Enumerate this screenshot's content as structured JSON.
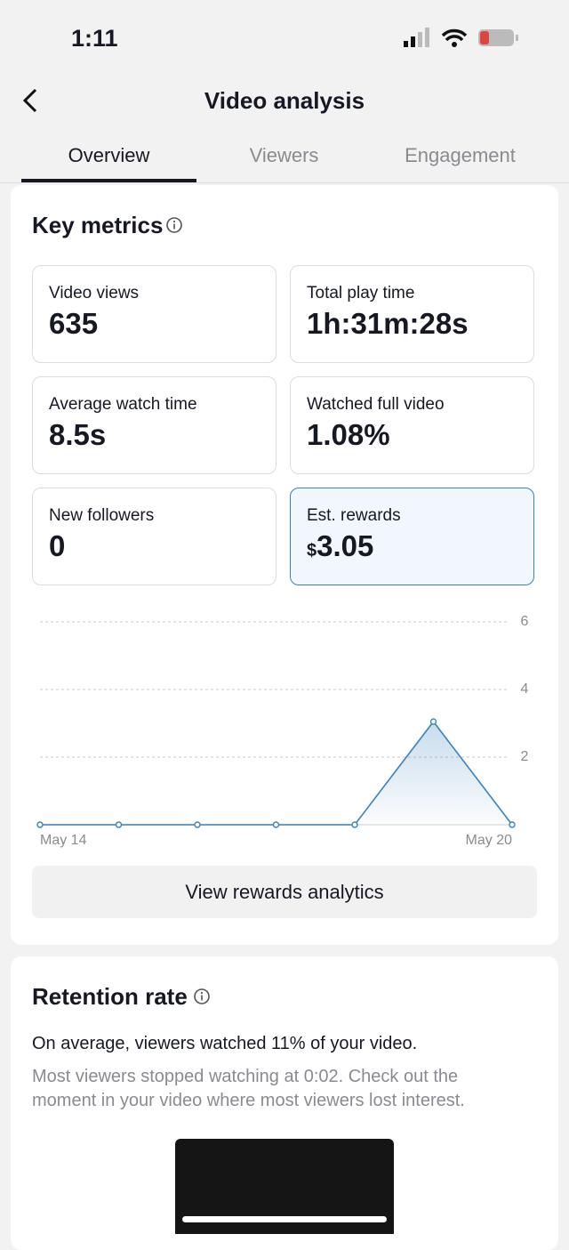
{
  "status_bar": {
    "time": "1:11"
  },
  "header": {
    "title": "Video analysis"
  },
  "tabs": [
    "Overview",
    "Viewers",
    "Engagement"
  ],
  "key_metrics": {
    "title": "Key metrics",
    "items": [
      {
        "label": "Video views",
        "value": "635"
      },
      {
        "label": "Total play time",
        "value": "1h:31m:28s"
      },
      {
        "label": "Average watch time",
        "value": "8.5s"
      },
      {
        "label": "Watched full video",
        "value": "1.08%"
      },
      {
        "label": "New followers",
        "value": "0"
      },
      {
        "label": "Est. rewards",
        "currency": "$",
        "value": "3.05"
      }
    ]
  },
  "chart_data": {
    "type": "line",
    "categories": [
      "May 14",
      null,
      null,
      null,
      null,
      null,
      "May 20"
    ],
    "series": [
      {
        "color": "#3a82bb",
        "values": [
          0,
          0,
          0,
          0,
          0,
          3.05,
          0
        ]
      }
    ],
    "ylim": [
      0,
      6
    ],
    "yticks": [
      2,
      4,
      6
    ],
    "grid": true
  },
  "button": {
    "label": "View rewards analytics"
  },
  "retention": {
    "title": "Retention rate",
    "summary": "On average, viewers watched 11% of your video.",
    "detail": "Most viewers stopped watching at 0:02. Check out the moment in your video where most viewers lost interest."
  }
}
